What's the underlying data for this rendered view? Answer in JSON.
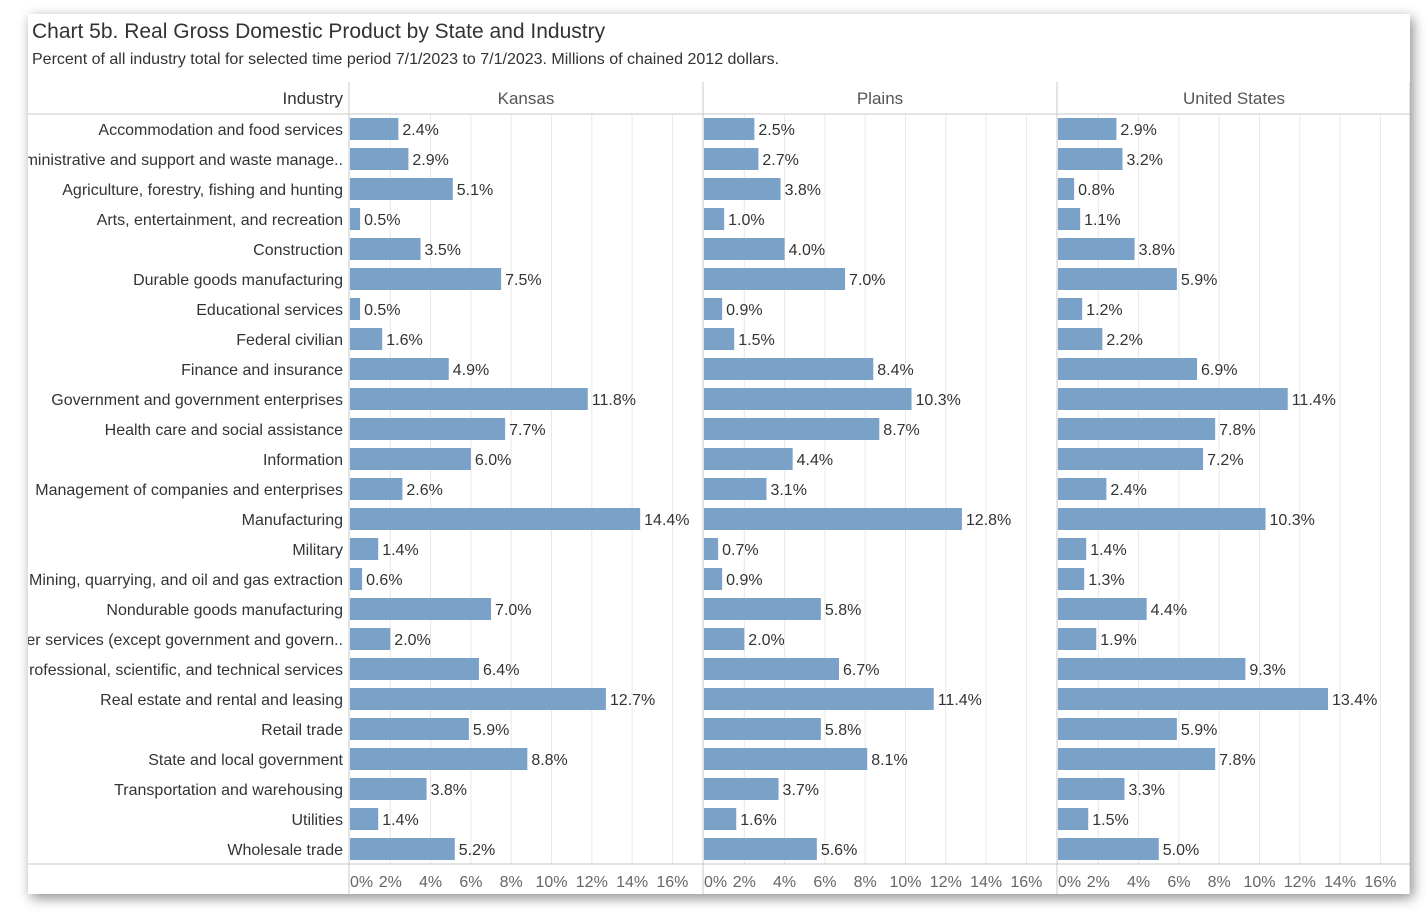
{
  "title": "Chart 5b. Real Gross Domestic Product by State and Industry",
  "subtitle": "Percent of all industry total for selected time period 7/1/2023 to 7/1/2023. Millions of chained 2012 dollars.",
  "colors": {
    "bar": "#7aa1c8",
    "grid": "#e8e8e8",
    "border": "#c8c8c8",
    "text": "#333333",
    "axis_text": "#666666"
  },
  "chart_data": {
    "type": "bar",
    "orientation": "horizontal",
    "row_header": "Industry",
    "categories": [
      "Accommodation and food services",
      "Administrative and support and waste manage..",
      "Agriculture, forestry, fishing and hunting",
      "Arts, entertainment, and recreation",
      "Construction",
      "Durable goods manufacturing",
      "Educational services",
      "Federal civilian",
      "Finance and insurance",
      "Government and government enterprises",
      "Health care and social assistance",
      "Information",
      "Management of companies and enterprises",
      "Manufacturing",
      "Military",
      "Mining, quarrying, and oil and gas extraction",
      "Nondurable goods manufacturing",
      "Other services (except government and govern..",
      "Professional, scientific, and technical services",
      "Real estate and rental and leasing",
      "Retail trade",
      "State and local government",
      "Transportation and warehousing",
      "Utilities",
      "Wholesale trade"
    ],
    "series": [
      {
        "name": "Kansas",
        "values": [
          2.4,
          2.9,
          5.1,
          0.5,
          3.5,
          7.5,
          0.5,
          1.6,
          4.9,
          11.8,
          7.7,
          6.0,
          2.6,
          14.4,
          1.4,
          0.6,
          7.0,
          2.0,
          6.4,
          12.7,
          5.9,
          8.8,
          3.8,
          1.4,
          5.2
        ]
      },
      {
        "name": "Plains",
        "values": [
          2.5,
          2.7,
          3.8,
          1.0,
          4.0,
          7.0,
          0.9,
          1.5,
          8.4,
          10.3,
          8.7,
          4.4,
          3.1,
          12.8,
          0.7,
          0.9,
          5.8,
          2.0,
          6.7,
          11.4,
          5.8,
          8.1,
          3.7,
          1.6,
          5.6
        ]
      },
      {
        "name": "United States",
        "values": [
          2.9,
          3.2,
          0.8,
          1.1,
          3.8,
          5.9,
          1.2,
          2.2,
          6.9,
          11.4,
          7.8,
          7.2,
          2.4,
          10.3,
          1.4,
          1.3,
          4.4,
          1.9,
          9.3,
          13.4,
          5.9,
          7.8,
          3.3,
          1.5,
          5.0
        ]
      }
    ],
    "xlim": [
      0,
      16
    ],
    "xticks": [
      "0%",
      "2%",
      "4%",
      "6%",
      "8%",
      "10%",
      "12%",
      "14%",
      "16%"
    ],
    "value_format": "one decimal percent",
    "grid": true
  }
}
